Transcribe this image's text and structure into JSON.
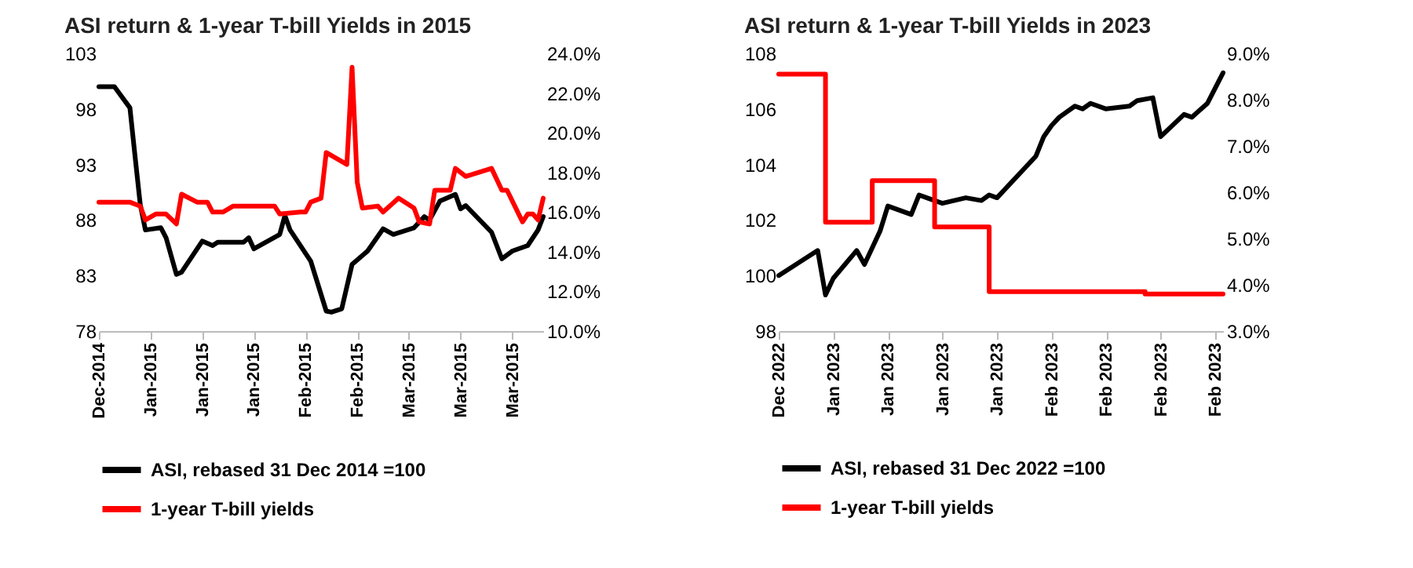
{
  "chart_data": [
    {
      "type": "line",
      "title": "ASI return & 1-year T-bill Yields in 2015",
      "legend": "bottom",
      "xlim": [
        "2014-12-31",
        "2015-03-27"
      ],
      "xticks": [
        {
          "value": "2014-12-31",
          "label": "Dec-2014"
        },
        {
          "value": "2015-01-10",
          "label": "Jan-2015"
        },
        {
          "value": "2015-01-20",
          "label": "Jan-2015"
        },
        {
          "value": "2015-01-30",
          "label": "Jan-2015"
        },
        {
          "value": "2015-02-09",
          "label": "Feb-2015"
        },
        {
          "value": "2015-02-19",
          "label": "Feb-2015"
        },
        {
          "value": "2015-03-01",
          "label": "Mar-2015"
        },
        {
          "value": "2015-03-11",
          "label": "Mar-2015"
        },
        {
          "value": "2015-03-21",
          "label": "Mar-2015"
        }
      ],
      "ylim": [
        78,
        103
      ],
      "yticks": [
        78,
        83,
        88,
        93,
        98,
        103
      ],
      "y2lim": [
        10,
        24
      ],
      "y2ticks": [
        {
          "value": 10,
          "label": "10.0%"
        },
        {
          "value": 12,
          "label": "12.0%"
        },
        {
          "value": 14,
          "label": "14.0%"
        },
        {
          "value": 16,
          "label": "16.0%"
        },
        {
          "value": 18,
          "label": "18.0%"
        },
        {
          "value": 20,
          "label": "20.0%"
        },
        {
          "value": 22,
          "label": "22.0%"
        },
        {
          "value": 24,
          "label": "24.0%"
        }
      ],
      "series": [
        {
          "name": "ASI, rebased 31 Dec 2014 =100",
          "color": "#000000",
          "type": "line",
          "x": [
            "2014-12-31",
            "2015-01-03",
            "2015-01-06",
            "2015-01-07",
            "2015-01-08",
            "2015-01-09",
            "2015-01-12",
            "2015-01-13",
            "2015-01-15",
            "2015-01-16",
            "2015-01-20",
            "2015-01-22",
            "2015-01-23",
            "2015-01-28",
            "2015-01-29",
            "2015-01-30",
            "2015-02-04",
            "2015-02-05",
            "2015-02-06",
            "2015-02-10",
            "2015-02-13",
            "2015-02-14",
            "2015-02-16",
            "2015-02-18",
            "2015-02-21",
            "2015-02-24",
            "2015-02-26",
            "2015-03-02",
            "2015-03-04",
            "2015-03-05",
            "2015-03-07",
            "2015-03-10",
            "2015-03-11",
            "2015-03-12",
            "2015-03-17",
            "2015-03-19",
            "2015-03-21",
            "2015-03-24",
            "2015-03-26",
            "2015-03-27"
          ],
          "values": [
            100.0,
            100.0,
            98.1,
            93.7,
            89.4,
            87.1,
            87.3,
            86.4,
            83.1,
            83.3,
            86.1,
            85.7,
            86.0,
            86.0,
            86.4,
            85.4,
            86.7,
            88.4,
            87.1,
            84.3,
            79.8,
            79.7,
            80.0,
            84.0,
            85.2,
            87.2,
            86.7,
            87.3,
            88.3,
            88.0,
            89.7,
            90.3,
            89.0,
            89.3,
            86.9,
            84.5,
            85.2,
            85.7,
            87.1,
            88.3
          ]
        },
        {
          "name": "1-year T-bill yields",
          "color": "#ff0000",
          "type": "line",
          "axis": "y2",
          "x": [
            "2014-12-31",
            "2015-01-06",
            "2015-01-08",
            "2015-01-09",
            "2015-01-11",
            "2015-01-13",
            "2015-01-15",
            "2015-01-16",
            "2015-01-19",
            "2015-01-21",
            "2015-01-22",
            "2015-01-24",
            "2015-01-26",
            "2015-01-28",
            "2015-01-31",
            "2015-02-03",
            "2015-02-04",
            "2015-02-08",
            "2015-02-09",
            "2015-02-10",
            "2015-02-12",
            "2015-02-13",
            "2015-02-17",
            "2015-02-18",
            "2015-02-19",
            "2015-02-20",
            "2015-02-23",
            "2015-02-24",
            "2015-02-27",
            "2015-03-02",
            "2015-03-03",
            "2015-03-05",
            "2015-03-06",
            "2015-03-09",
            "2015-03-10",
            "2015-03-12",
            "2015-03-17",
            "2015-03-19",
            "2015-03-20",
            "2015-03-23",
            "2015-03-24",
            "2015-03-25",
            "2015-03-26",
            "2015-03-27"
          ],
          "values": [
            16.5,
            16.5,
            16.3,
            15.6,
            15.9,
            15.9,
            15.4,
            16.9,
            16.5,
            16.5,
            16.0,
            16.0,
            16.3,
            16.3,
            16.3,
            16.3,
            15.9,
            16.0,
            16.0,
            16.5,
            16.7,
            19.0,
            18.4,
            23.3,
            17.5,
            16.2,
            16.3,
            16.0,
            16.7,
            16.2,
            15.5,
            15.4,
            17.1,
            17.1,
            18.2,
            17.8,
            18.2,
            17.1,
            17.1,
            15.5,
            15.9,
            15.9,
            15.6,
            16.7
          ]
        }
      ]
    },
    {
      "type": "line",
      "title": "ASI return & 1-year T-bill Yields in 2023",
      "legend": "bottom",
      "xlim": [
        "2022-12-30",
        "2023-02-25"
      ],
      "xticks": [
        {
          "value": "2022-12-30",
          "label": "Dec 2022"
        },
        {
          "value": "2023-01-06",
          "label": "Jan 2023"
        },
        {
          "value": "2023-01-13",
          "label": "Jan 2023"
        },
        {
          "value": "2023-01-20",
          "label": "Jan 2023"
        },
        {
          "value": "2023-01-27",
          "label": "Jan 2023"
        },
        {
          "value": "2023-02-03",
          "label": "Feb 2023"
        },
        {
          "value": "2023-02-10",
          "label": "Feb 2023"
        },
        {
          "value": "2023-02-17",
          "label": "Feb 2023"
        },
        {
          "value": "2023-02-24",
          "label": "Feb 2023"
        }
      ],
      "ylim": [
        98,
        108
      ],
      "yticks": [
        98,
        100,
        102,
        104,
        106,
        108
      ],
      "y2lim": [
        3,
        9
      ],
      "y2ticks": [
        {
          "value": 3,
          "label": "3.0%"
        },
        {
          "value": 4,
          "label": "4.0%"
        },
        {
          "value": 5,
          "label": "5.0%"
        },
        {
          "value": 6,
          "label": "6.0%"
        },
        {
          "value": 7,
          "label": "7.0%"
        },
        {
          "value": 8,
          "label": "8.0%"
        },
        {
          "value": 9,
          "label": "9.0%"
        }
      ],
      "series": [
        {
          "name": "ASI, rebased 31 Dec 2022 =100",
          "color": "#000000",
          "type": "line",
          "x": [
            "2022-12-30",
            "2023-01-04",
            "2023-01-05",
            "2023-01-06",
            "2023-01-09",
            "2023-01-10",
            "2023-01-12",
            "2023-01-13",
            "2023-01-16",
            "2023-01-17",
            "2023-01-18",
            "2023-01-20",
            "2023-01-23",
            "2023-01-25",
            "2023-01-26",
            "2023-01-27",
            "2023-01-30",
            "2023-02-01",
            "2023-02-02",
            "2023-02-03",
            "2023-02-04",
            "2023-02-06",
            "2023-02-07",
            "2023-02-08",
            "2023-02-10",
            "2023-02-13",
            "2023-02-14",
            "2023-02-16",
            "2023-02-17",
            "2023-02-20",
            "2023-02-21",
            "2023-02-23",
            "2023-02-25"
          ],
          "values": [
            100.0,
            100.9,
            99.3,
            99.9,
            100.9,
            100.4,
            101.6,
            102.5,
            102.2,
            102.9,
            102.8,
            102.6,
            102.8,
            102.7,
            102.9,
            102.8,
            103.7,
            104.3,
            105.0,
            105.4,
            105.7,
            106.1,
            106.0,
            106.2,
            106.0,
            106.1,
            106.3,
            106.4,
            105.0,
            105.8,
            105.7,
            106.2,
            107.3
          ]
        },
        {
          "name": "1-year T-bill yields",
          "color": "#ff0000",
          "type": "step",
          "axis": "y2",
          "x": [
            "2022-12-30",
            "2023-01-05",
            "2023-01-11",
            "2023-01-19",
            "2023-01-26",
            "2023-02-15",
            "2023-02-25"
          ],
          "values": [
            8.55,
            5.35,
            6.25,
            5.25,
            3.85,
            3.8,
            3.8
          ]
        }
      ]
    }
  ]
}
